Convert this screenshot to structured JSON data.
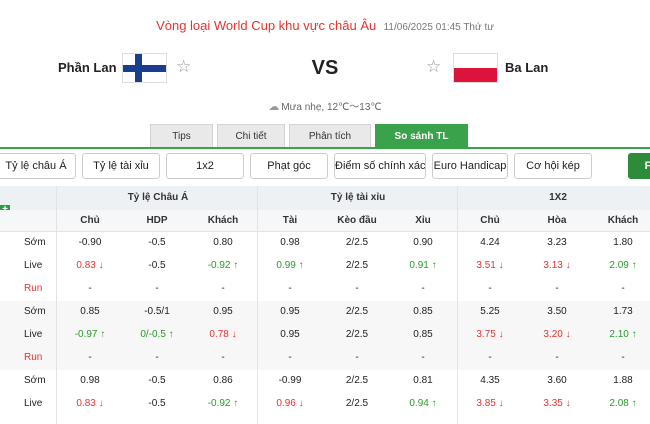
{
  "header": {
    "league": "Vòng loại World Cup khu vực châu Âu",
    "datetime": "11/06/2025 01:45 Thứ tư"
  },
  "match": {
    "home": "Phần Lan",
    "away": "Ba Lan",
    "vs": "VS",
    "weather": "Mưa nhẹ, 12℃～13℃"
  },
  "tabs": [
    "Tips",
    "Chi tiết",
    "Phân tích",
    "So sánh TL"
  ],
  "subtabs": [
    "Tỷ lệ châu Á",
    "Tỷ lệ tài xỉu",
    "1x2",
    "Phạt góc",
    "Điểm số chính xác",
    "Euro Handicap",
    "Cơ hội kép",
    "F"
  ],
  "table": {
    "plus": "+",
    "groups": [
      "Tỷ lệ Châu Á",
      "Tỷ lệ tài xỉu",
      "1X2"
    ],
    "columns": [
      "Chủ",
      "HDP",
      "Khách",
      "Tài",
      "Kèo đầu",
      "Xỉu",
      "Chủ",
      "Hòa",
      "Khách"
    ],
    "rows": [
      {
        "label": "Sớm",
        "cells": [
          "-0.90",
          "-0.5",
          "0.80",
          "0.98",
          "2/2.5",
          "0.90",
          "4.24",
          "3.23",
          "1.80"
        ]
      },
      {
        "label": "Live",
        "cells": [
          "0.83 ↓",
          "-0.5",
          "-0.92 ↑",
          "0.99 ↑",
          "2/2.5",
          "0.91 ↑",
          "3.51 ↓",
          "3.13 ↓",
          "2.09 ↑"
        ]
      },
      {
        "label": "Run",
        "cells": [
          "-",
          "-",
          "-",
          "-",
          "-",
          "-",
          "-",
          "-",
          "-"
        ]
      },
      {
        "label": "Sớm",
        "cells": [
          "0.85",
          "-0.5/1",
          "0.95",
          "0.95",
          "2/2.5",
          "0.85",
          "5.25",
          "3.50",
          "1.73"
        ]
      },
      {
        "label": "Live",
        "cells": [
          "-0.97 ↑",
          "0/-0.5 ↑",
          "0.78 ↓",
          "0.95",
          "2/2.5",
          "0.85",
          "3.75 ↓",
          "3.20 ↓",
          "2.10 ↑"
        ]
      },
      {
        "label": "Run",
        "cells": [
          "-",
          "-",
          "-",
          "-",
          "-",
          "-",
          "-",
          "-",
          "-"
        ]
      },
      {
        "label": "Sớm",
        "cells": [
          "0.98",
          "-0.5",
          "0.86",
          "-0.99",
          "2/2.5",
          "0.81",
          "4.35",
          "3.60",
          "1.88"
        ]
      },
      {
        "label": "Live",
        "cells": [
          "0.83 ↓",
          "-0.5",
          "-0.92 ↑",
          "0.96 ↓",
          "2/2.5",
          "0.94 ↑",
          "3.85 ↓",
          "3.35 ↓",
          "2.08 ↑"
        ]
      }
    ]
  },
  "icons": {
    "star": "☆",
    "weather": "cloud-rain-icon"
  },
  "colors": {
    "accent": "#3aa24a",
    "league": "#e5342f",
    "up": "#2a9a2a",
    "down": "#e5342f"
  }
}
